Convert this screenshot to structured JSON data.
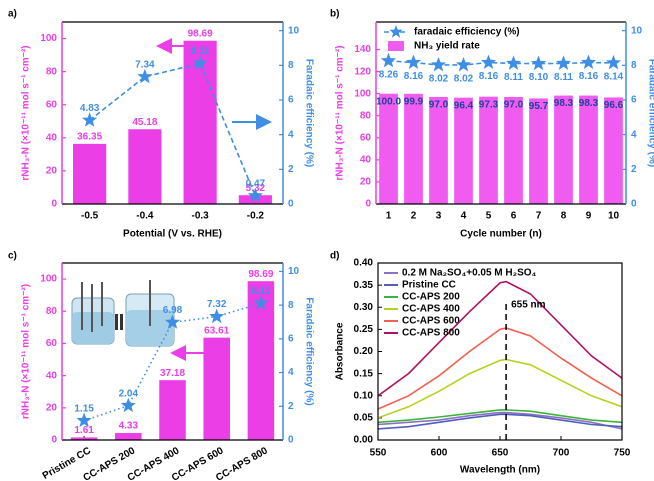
{
  "chart_data": [
    {
      "label": "a)",
      "type": "bar_line",
      "categories": [
        "-0.5",
        "-0.4",
        "-0.3",
        "-0.2"
      ],
      "series": [
        {
          "color": "#ec3ee6",
          "values": [
            36.35,
            45.18,
            98.69,
            5.32
          ]
        },
        {
          "color": "#3f8ee6",
          "axis": "y2",
          "line_style": "dashed",
          "values": [
            4.83,
            7.34,
            8.11,
            0.47
          ]
        }
      ],
      "xlabel": "Potential (V vs. RHE)",
      "ylabel": "rNH₃-N (×10⁻¹¹ mol s⁻¹ cm⁻²)",
      "y2label": "Faradaic efficiency (%)",
      "ylim": [
        0,
        110
      ],
      "yticks": [
        0,
        20,
        40,
        60,
        80,
        100
      ],
      "y2lim": [
        0,
        10.5
      ],
      "y2ticks": [
        0,
        2,
        4,
        6,
        8,
        10
      ]
    },
    {
      "label": "b)",
      "type": "bar_line",
      "categories": [
        "1",
        "2",
        "3",
        "4",
        "5",
        "6",
        "7",
        "8",
        "9",
        "10"
      ],
      "series": [
        {
          "name": "faradaic efficiency (%)",
          "color": "#3f8ee6",
          "axis": "y2",
          "line_style": "dashed",
          "values": [
            8.26,
            8.16,
            8.02,
            8.02,
            8.16,
            8.11,
            8.1,
            8.11,
            8.16,
            8.14
          ],
          "value_labels": [
            "8.26",
            "8.16",
            "8.02",
            "8.02",
            "8.16",
            "8.11",
            "8.10",
            "8.11",
            "8.16",
            "8.14"
          ]
        },
        {
          "name": "NH₃ yield rate",
          "color": "#f05cf0",
          "values": [
            100,
            99.9,
            97,
            96.4,
            97.3,
            97,
            95.7,
            98.3,
            98.3,
            96.6
          ],
          "value_labels": [
            "100.0",
            "99.9",
            "97.0",
            "96.4",
            "97.3",
            "97.0",
            "95.7",
            "98.3",
            "98.3",
            "96.6"
          ]
        }
      ],
      "legend": "upper left",
      "xlabel": "Cycle number (n)",
      "ylabel": "rNH₃-N (×10⁻¹¹ mol s⁻¹ cm⁻²)",
      "y2label": "Faradaic efficiency (%)",
      "ylim": [
        0,
        165
      ],
      "yticks": [
        0,
        20,
        40,
        60,
        80,
        100,
        120,
        140
      ],
      "y2lim": [
        0,
        10.5
      ],
      "y2ticks": [
        0,
        2,
        4,
        6,
        8,
        10
      ]
    },
    {
      "label": "c)",
      "type": "bar_line",
      "categories": [
        "Pristine CC",
        "CC-APS 200",
        "CC-APS 400",
        "CC-APS 600",
        "CC-APS 800"
      ],
      "series": [
        {
          "color": "#ec3ee6",
          "values": [
            1.61,
            4.33,
            37.18,
            63.61,
            98.69
          ]
        },
        {
          "color": "#3f8ee6",
          "axis": "y2",
          "line_style": "dotted",
          "values": [
            1.15,
            2.04,
            6.98,
            7.32,
            8.11
          ]
        }
      ],
      "ylabel": "rNH₃-N (×10⁻¹¹ mol s⁻¹ cm⁻²)",
      "y2label": "Faradaic efficiency (%)",
      "ylim": [
        0,
        110
      ],
      "yticks": [
        0,
        20,
        40,
        60,
        80,
        100
      ],
      "y2lim": [
        0,
        10.5
      ],
      "y2ticks": [
        0,
        2,
        4,
        6,
        8,
        10
      ]
    },
    {
      "label": "d)",
      "type": "line",
      "x": [
        550,
        575,
        600,
        625,
        650,
        655,
        675,
        700,
        725,
        750
      ],
      "series": [
        {
          "name": "0.2 M Na₂SO₄+0.05 M H₂SO₄",
          "color": "#9070c0",
          "values": [
            0.035,
            0.04,
            0.045,
            0.055,
            0.062,
            0.062,
            0.058,
            0.05,
            0.04,
            0.025
          ]
        },
        {
          "name": "Pristine CC",
          "color": "#4f5fc0",
          "values": [
            0.025,
            0.03,
            0.04,
            0.05,
            0.058,
            0.058,
            0.055,
            0.045,
            0.035,
            0.03
          ]
        },
        {
          "name": "CC-APS 200",
          "color": "#3cb43c",
          "values": [
            0.04,
            0.045,
            0.052,
            0.06,
            0.068,
            0.068,
            0.065,
            0.055,
            0.045,
            0.04
          ]
        },
        {
          "name": "CC-APS 400",
          "color": "#b8d020",
          "values": [
            0.05,
            0.075,
            0.11,
            0.15,
            0.18,
            0.182,
            0.17,
            0.135,
            0.1,
            0.075
          ]
        },
        {
          "name": "CC-APS 600",
          "color": "#f06050",
          "values": [
            0.07,
            0.1,
            0.145,
            0.2,
            0.25,
            0.253,
            0.235,
            0.185,
            0.14,
            0.1
          ]
        },
        {
          "name": "CC-APS 800",
          "color": "#b0125f",
          "values": [
            0.1,
            0.15,
            0.22,
            0.29,
            0.355,
            0.358,
            0.33,
            0.26,
            0.19,
            0.14
          ]
        }
      ],
      "legend": "upper left",
      "annotations": [
        {
          "text": "655 nm",
          "x": 655
        }
      ],
      "xlabel": "Wavelength (nm)",
      "ylabel": "Absorbance",
      "xlim": [
        550,
        750
      ],
      "xticks": [
        550,
        600,
        650,
        700,
        750
      ],
      "ylim": [
        0,
        0.4
      ],
      "yticks": [
        {
          "value": 0,
          "label": "0.00"
        },
        {
          "value": 0.05,
          "label": "0.05"
        },
        {
          "value": 0.1,
          "label": "0.10"
        },
        {
          "value": 0.15,
          "label": "0.15"
        },
        {
          "value": 0.2,
          "label": "0.20"
        },
        {
          "value": 0.25,
          "label": "0.25"
        },
        {
          "value": 0.3,
          "label": "0.30"
        },
        {
          "value": 0.35,
          "label": "0.35"
        },
        {
          "value": 0.4,
          "label": "0.40"
        }
      ]
    }
  ]
}
